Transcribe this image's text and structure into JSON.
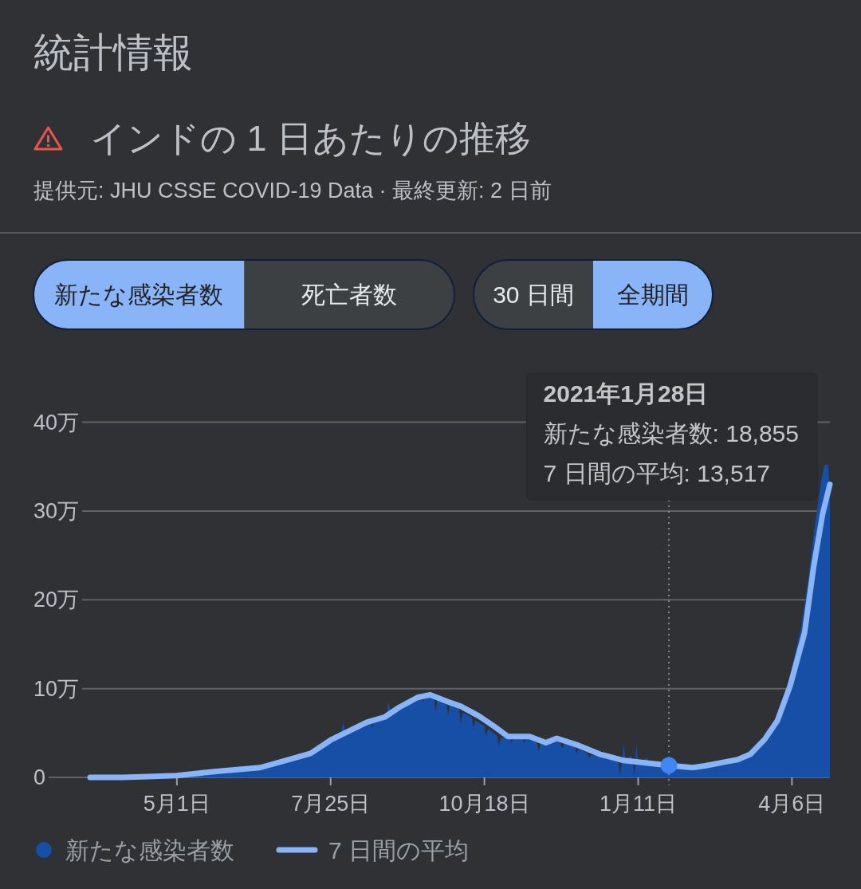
{
  "chart_data": {
    "type": "area",
    "title": "統計情報",
    "subtitle": "インドの 1 日あたりの推移",
    "annotations": [
      "提供元: JHU CSSE COVID-19 Data · 最終更新: 2 日前",
      "新たな感染者数",
      "死亡者数",
      "30 日間",
      "全期間",
      "2021年1月28日",
      "新たな感染者数: 18,855",
      "7 日間の平均: 13,517"
    ],
    "series": [
      {
        "name": "新たな感染者数",
        "color": "#174ea6",
        "x": [
          "2020-03-14",
          "2020-04-01",
          "2020-04-15",
          "2020-05-01",
          "2020-05-24",
          "2020-06-16",
          "2020-07-02",
          "2020-07-14",
          "2020-07-25",
          "2020-07-31",
          "2020-08-01",
          "2020-08-02",
          "2020-08-14",
          "2020-08-16",
          "2020-08-17",
          "2020-08-18",
          "2020-08-25",
          "2020-08-26",
          "2020-08-27",
          "2020-09-01",
          "2020-09-11",
          "2020-09-13",
          "2020-09-14",
          "2020-09-15",
          "2020-09-18",
          "2020-09-20",
          "2020-09-21",
          "2020-09-22",
          "2020-09-27",
          "2020-09-28",
          "2020-09-29",
          "2020-10-04",
          "2020-10-05",
          "2020-10-06",
          "2020-10-11",
          "2020-10-12",
          "2020-10-13",
          "2020-10-18",
          "2020-10-19",
          "2020-10-20",
          "2020-10-25",
          "2020-10-26",
          "2020-10-27",
          "2020-11-01",
          "2020-11-02",
          "2020-11-03",
          "2020-11-08",
          "2020-11-09",
          "2020-11-10",
          "2020-11-16",
          "2020-11-17",
          "2020-11-18",
          "2020-11-27",
          "2020-11-29",
          "2020-11-30",
          "2020-12-01",
          "2020-12-07",
          "2020-12-08",
          "2020-12-09",
          "2020-12-14",
          "2020-12-15",
          "2020-12-16",
          "2020-12-21",
          "2020-12-31",
          "2021-01-01",
          "2021-01-02",
          "2021-01-03",
          "2021-01-04",
          "2021-01-07",
          "2021-01-08",
          "2021-01-09",
          "2021-01-10",
          "2021-01-11",
          "2021-01-16",
          "2021-01-17",
          "2021-02-10",
          "2021-02-17",
          "2021-02-27",
          "2021-03-07",
          "2021-03-17",
          "2021-03-22",
          "2021-03-29",
          "2021-04-01",
          "2021-04-05",
          "2021-04-11",
          "2021-04-15",
          "2021-04-18",
          "2021-04-22",
          "2021-04-24",
          "2021-04-26",
          "2021-04-27"
        ],
        "values": [
          0,
          0,
          0.1,
          0.2,
          0.7,
          1.1,
          2.1,
          2.8,
          4.3,
          5.2,
          6.2,
          5.3,
          6.3,
          6.4,
          5.6,
          6.5,
          6.9,
          8.5,
          7.5,
          8.0,
          9.1,
          9.4,
          8.4,
          9.4,
          9.5,
          9.3,
          7.5,
          8.7,
          8.4,
          7.0,
          8.3,
          7.7,
          6.1,
          7.3,
          6.8,
          5.5,
          6.4,
          5.8,
          4.6,
          5.5,
          4.7,
          3.6,
          4.4,
          4.7,
          3.8,
          4.6,
          4.7,
          3.8,
          4.5,
          4.0,
          2.9,
          3.8,
          4.4,
          4.0,
          3.2,
          3.8,
          3.6,
          2.7,
          3.2,
          2.7,
          2.2,
          2.5,
          2.6,
          2.0,
          0.2,
          1.9,
          3.7,
          1.9,
          2.5,
          1.8,
          0.2,
          3.7,
          1.7,
          2.2,
          1.6,
          1.2,
          1.3,
          1.7,
          2.1,
          3.4,
          4.7,
          6.7,
          8.8,
          11.5,
          16.8,
          22.2,
          27.3,
          33.2,
          35.2,
          35.2,
          32.0
        ]
      },
      {
        "name": "7 日間の平均",
        "type": "line",
        "color": "#8ab4f8",
        "x": [
          "2020-03-14",
          "2020-04-01",
          "2020-04-15",
          "2020-05-01",
          "2020-05-24",
          "2020-06-16",
          "2020-07-02",
          "2020-07-14",
          "2020-07-25",
          "2020-08-03",
          "2020-08-14",
          "2020-08-24",
          "2020-09-01",
          "2020-09-11",
          "2020-09-18",
          "2020-09-28",
          "2020-10-05",
          "2020-10-15",
          "2020-10-23",
          "2020-10-31",
          "2020-11-12",
          "2020-11-21",
          "2020-11-27",
          "2020-12-09",
          "2020-12-21",
          "2021-01-03",
          "2021-01-12",
          "2021-01-28",
          "2021-02-10",
          "2021-02-17",
          "2021-02-27",
          "2021-03-07",
          "2021-03-14",
          "2021-03-22",
          "2021-03-29",
          "2021-04-05",
          "2021-04-13",
          "2021-04-18",
          "2021-04-23",
          "2021-04-27"
        ],
        "values": [
          0,
          0,
          0.1,
          0.2,
          0.7,
          1.1,
          2.0,
          2.7,
          4.2,
          5.1,
          6.2,
          6.8,
          7.9,
          9.0,
          9.3,
          8.5,
          8.0,
          6.9,
          5.8,
          4.6,
          4.6,
          3.9,
          4.4,
          3.6,
          2.6,
          1.9,
          1.7,
          1.3517,
          1.1,
          1.3,
          1.7,
          2.0,
          2.6,
          4.3,
          6.4,
          10.3,
          16.3,
          23.7,
          29.7,
          33.0
        ]
      },
      {
        "type": "scatter",
        "color": "#4285f4",
        "x": [
          "2021-01-28"
        ],
        "values": [
          1.3517
        ]
      }
    ],
    "xlim": [
      "2020-02-19",
      "2021-04-27"
    ],
    "xticks": [
      {
        "value": "2020-05-01",
        "label": "5月1日"
      },
      {
        "value": "2020-07-25",
        "label": "7月25日"
      },
      {
        "value": "2020-10-18",
        "label": "10月18日"
      },
      {
        "value": "2021-01-11",
        "label": "1月11日"
      },
      {
        "value": "2021-04-06",
        "label": "4月6日"
      }
    ],
    "ylim": [
      0,
      40
    ],
    "yticks": [
      0,
      {
        "value": 10,
        "label": "10万"
      },
      {
        "value": 20,
        "label": "20万"
      },
      {
        "value": 30,
        "label": "30万"
      },
      {
        "value": 40,
        "label": "40万"
      }
    ],
    "grid": "y",
    "legend": "bottom",
    "ref_lines": [
      {
        "axis": "x",
        "value": "2021-01-28",
        "color": "#9aa0a6",
        "line_style": "dotted"
      }
    ]
  }
}
